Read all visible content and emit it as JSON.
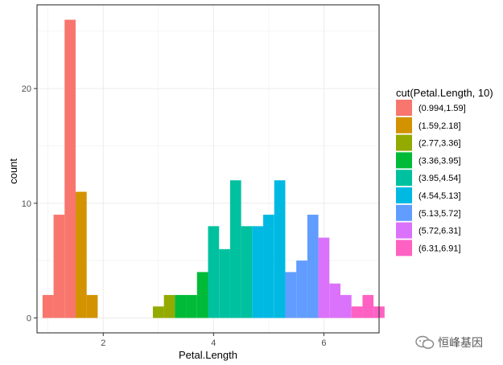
{
  "chart_data": {
    "type": "bar",
    "xlabel": "Petal.Length",
    "ylabel": "count",
    "xlim": [
      0.8,
      7.0
    ],
    "ylim": [
      -1.3,
      27.3
    ],
    "x_ticks": [
      2,
      4,
      6
    ],
    "y_ticks": [
      0,
      10,
      20
    ],
    "grid": true,
    "legend_position": "right",
    "legend_title": "cut(Petal.Length, 10)",
    "series": [
      {
        "name": "(0.994,1.59]",
        "color": "#F8766D",
        "bars": [
          {
            "x0": 0.9,
            "x1": 1.1,
            "value": 2
          },
          {
            "x0": 1.1,
            "x1": 1.3,
            "value": 9
          },
          {
            "x0": 1.3,
            "x1": 1.5,
            "value": 26
          }
        ]
      },
      {
        "name": "(1.59,2.18]",
        "color": "#D39200",
        "bars": [
          {
            "x0": 1.5,
            "x1": 1.7,
            "value": 11
          },
          {
            "x0": 1.7,
            "x1": 1.9,
            "value": 2
          }
        ]
      },
      {
        "name": "(2.77,3.36]",
        "color": "#93AA00",
        "bars": [
          {
            "x0": 2.9,
            "x1": 3.1,
            "value": 1
          },
          {
            "x0": 3.1,
            "x1": 3.3,
            "value": 2
          }
        ]
      },
      {
        "name": "(3.36,3.95]",
        "color": "#00BA38",
        "bars": [
          {
            "x0": 3.3,
            "x1": 3.5,
            "value": 2
          },
          {
            "x0": 3.5,
            "x1": 3.7,
            "value": 2
          },
          {
            "x0": 3.7,
            "x1": 3.9,
            "value": 4
          }
        ]
      },
      {
        "name": "(3.95,4.54]",
        "color": "#00C19F",
        "bars": [
          {
            "x0": 3.9,
            "x1": 4.1,
            "value": 8
          },
          {
            "x0": 4.1,
            "x1": 4.3,
            "value": 6
          },
          {
            "x0": 4.3,
            "x1": 4.5,
            "value": 12
          },
          {
            "x0": 4.5,
            "x1": 4.7,
            "value": 8
          }
        ]
      },
      {
        "name": "(4.54,5.13]",
        "color": "#00B9E3",
        "bars": [
          {
            "x0": 4.7,
            "x1": 4.9,
            "value": 8
          },
          {
            "x0": 4.9,
            "x1": 5.1,
            "value": 9
          },
          {
            "x0": 5.1,
            "x1": 5.3,
            "value": 12
          }
        ]
      },
      {
        "name": "(5.13,5.72]",
        "color": "#619CFF",
        "bars": [
          {
            "x0": 5.3,
            "x1": 5.5,
            "value": 4
          },
          {
            "x0": 5.5,
            "x1": 5.7,
            "value": 5
          },
          {
            "x0": 5.7,
            "x1": 5.9,
            "value": 9
          }
        ]
      },
      {
        "name": "(5.72,6.31]",
        "color": "#DB72FB",
        "bars": [
          {
            "x0": 5.9,
            "x1": 6.1,
            "value": 7
          },
          {
            "x0": 6.1,
            "x1": 6.3,
            "value": 3
          },
          {
            "x0": 6.3,
            "x1": 6.5,
            "value": 2
          }
        ]
      },
      {
        "name": "(6.31,6.91]",
        "color": "#FF61C3",
        "bars": [
          {
            "x0": 6.5,
            "x1": 6.7,
            "value": 1
          },
          {
            "x0": 6.7,
            "x1": 6.9,
            "value": 2
          },
          {
            "x0": 6.9,
            "x1": 7.1,
            "value": 1
          }
        ]
      }
    ]
  },
  "watermark": {
    "text": "恒峰基因",
    "icon": "wechat-icon"
  }
}
